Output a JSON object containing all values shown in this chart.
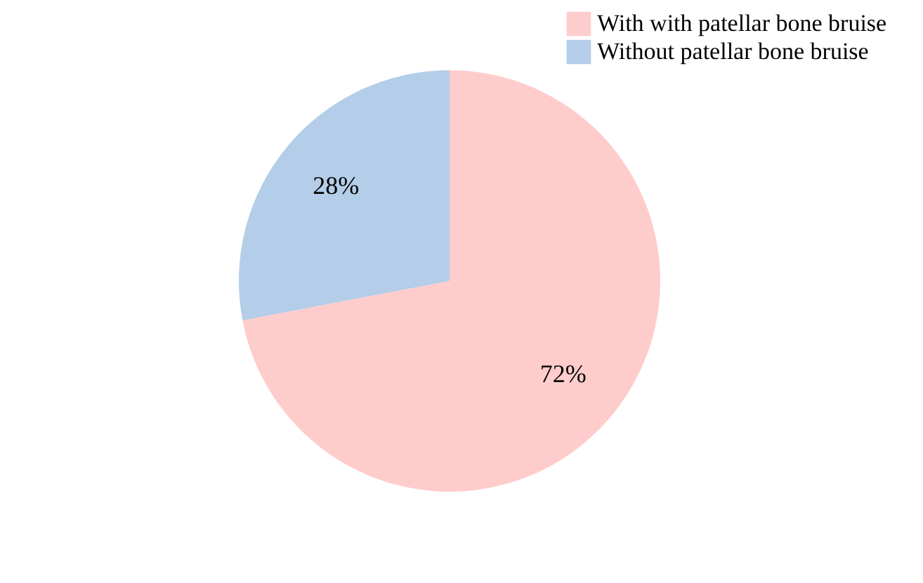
{
  "chart_data": {
    "type": "pie",
    "categories": [
      "With with patellar bone bruise",
      "Without patellar bone bruise"
    ],
    "values": [
      72,
      28
    ],
    "colors": [
      "#ffcccc",
      "#b4cde8"
    ],
    "value_labels": [
      "72%",
      "28%"
    ],
    "legend": "top right"
  }
}
